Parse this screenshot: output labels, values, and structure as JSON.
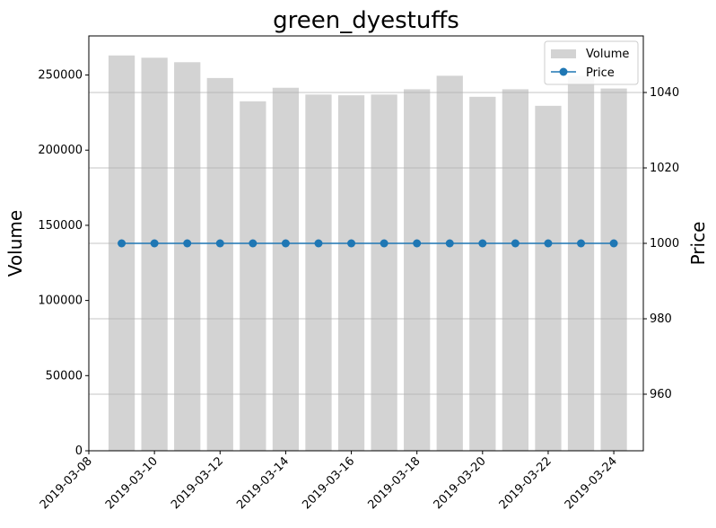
{
  "chart_data": {
    "type": "bar",
    "title": "green_dyestuffs",
    "x": [
      "2019-03-09",
      "2019-03-10",
      "2019-03-11",
      "2019-03-12",
      "2019-03-13",
      "2019-03-14",
      "2019-03-15",
      "2019-03-16",
      "2019-03-17",
      "2019-03-18",
      "2019-03-19",
      "2019-03-20",
      "2019-03-21",
      "2019-03-22",
      "2019-03-23",
      "2019-03-24"
    ],
    "xticks": [
      "2019-03-08",
      "2019-03-10",
      "2019-03-12",
      "2019-03-14",
      "2019-03-16",
      "2019-03-18",
      "2019-03-20",
      "2019-03-22",
      "2019-03-24"
    ],
    "xlim": [
      "2019-03-08",
      "2019-03-24.9"
    ],
    "series": [
      {
        "name": "Volume",
        "type": "bar",
        "axis": "left",
        "color": "#d3d3d3",
        "values": [
          263000,
          261500,
          258500,
          248000,
          232500,
          241500,
          237000,
          236500,
          237000,
          240500,
          249500,
          235500,
          240500,
          229500,
          249500,
          241000
        ]
      },
      {
        "name": "Price",
        "type": "line",
        "axis": "right",
        "color": "#1f77b4",
        "marker": "circle",
        "values": [
          1000,
          1000,
          1000,
          1000,
          1000,
          1000,
          1000,
          1000,
          1000,
          1000,
          1000,
          1000,
          1000,
          1000,
          1000,
          1000
        ]
      }
    ],
    "ylabel": "Volume",
    "ylim": [
      0,
      276000
    ],
    "yticks": [
      0,
      50000,
      100000,
      150000,
      200000,
      250000
    ],
    "y2label": "Price",
    "y2lim": [
      945,
      1055
    ],
    "y2ticks": [
      960,
      980,
      1000,
      1020,
      1040
    ],
    "grid": "horizontal lines at right-axis ticks",
    "legend": "top-right"
  }
}
